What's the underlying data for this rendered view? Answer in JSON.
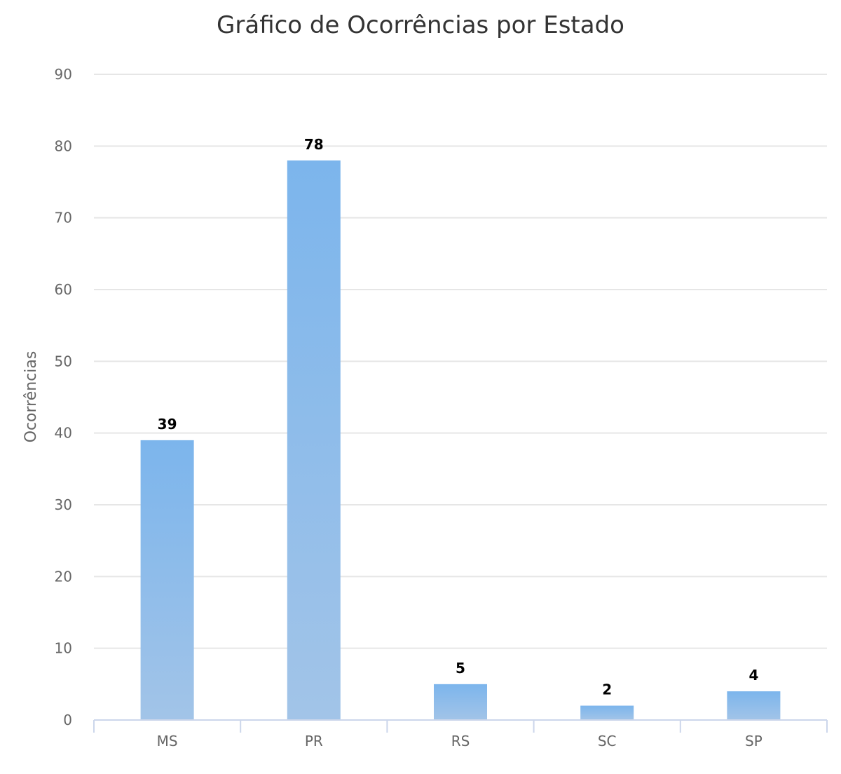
{
  "chart_data": {
    "type": "bar",
    "title": "Gráfico de Ocorrências por Estado",
    "xlabel": "",
    "ylabel": "Ocorrências",
    "categories": [
      "MS",
      "PR",
      "RS",
      "SC",
      "SP"
    ],
    "series": [
      {
        "values": [
          39,
          78,
          5,
          2,
          4
        ]
      }
    ],
    "ylim": [
      0,
      90
    ],
    "yticks": [
      0,
      10,
      20,
      30,
      40,
      50,
      60,
      70,
      80,
      90
    ],
    "grid": true,
    "legend": "none",
    "data_labels": true,
    "bar_color_top": "#7cb5ec",
    "bar_color_bottom": "#a2c4e8",
    "grid_color": "#e6e6e6",
    "axis_color": "#ccd6eb"
  }
}
